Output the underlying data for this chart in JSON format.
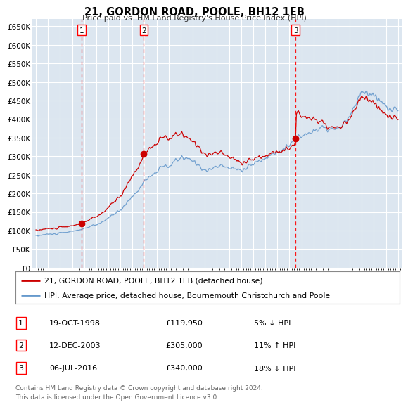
{
  "title": "21, GORDON ROAD, POOLE, BH12 1EB",
  "subtitle": "Price paid vs. HM Land Registry's House Price Index (HPI)",
  "ylabel_ticks": [
    "£0",
    "£50K",
    "£100K",
    "£150K",
    "£200K",
    "£250K",
    "£300K",
    "£350K",
    "£400K",
    "£450K",
    "£500K",
    "£550K",
    "£600K",
    "£650K"
  ],
  "ytick_values": [
    0,
    50000,
    100000,
    150000,
    200000,
    250000,
    300000,
    350000,
    400000,
    450000,
    500000,
    550000,
    600000,
    650000
  ],
  "ylim": [
    0,
    670000
  ],
  "transactions": [
    {
      "num": 1,
      "date": "19-OCT-1998",
      "price": 119950,
      "price_str": "£119,950",
      "pct": "5%",
      "dir": "↓",
      "x_year": 1998.79
    },
    {
      "num": 2,
      "date": "12-DEC-2003",
      "price": 305000,
      "price_str": "£305,000",
      "pct": "11%",
      "dir": "↑",
      "x_year": 2003.94
    },
    {
      "num": 3,
      "date": "06-JUL-2016",
      "price": 340000,
      "price_str": "£340,000",
      "pct": "18%",
      "dir": "↓",
      "x_year": 2016.51
    }
  ],
  "legend_line1": "21, GORDON ROAD, POOLE, BH12 1EB (detached house)",
  "legend_line2": "HPI: Average price, detached house, Bournemouth Christchurch and Poole",
  "footer1": "Contains HM Land Registry data © Crown copyright and database right 2024.",
  "footer2": "This data is licensed under the Open Government Licence v3.0.",
  "line_color_red": "#cc0000",
  "line_color_blue": "#6699cc",
  "bg_color": "#dce6f0",
  "grid_color": "#ffffff",
  "xlabel_years": [
    1995,
    1996,
    1997,
    1998,
    1999,
    2000,
    2001,
    2002,
    2003,
    2004,
    2005,
    2006,
    2007,
    2008,
    2009,
    2010,
    2011,
    2012,
    2013,
    2014,
    2015,
    2016,
    2017,
    2018,
    2019,
    2020,
    2021,
    2022,
    2023,
    2024,
    2025
  ],
  "xlim": [
    1994.7,
    2025.3
  ]
}
